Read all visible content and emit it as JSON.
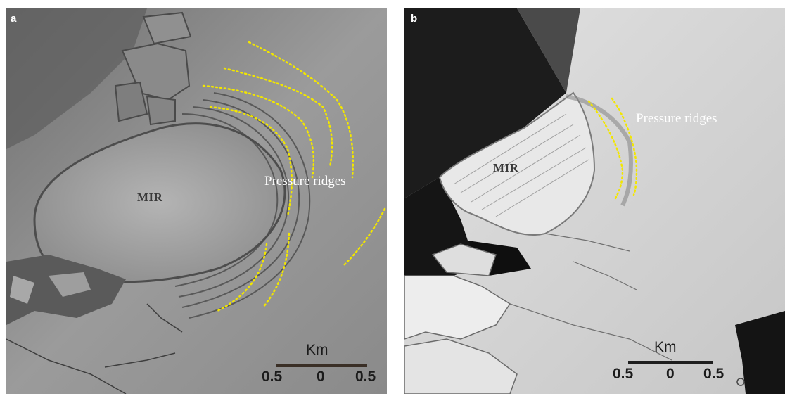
{
  "panels": [
    {
      "letter": "a",
      "region_label": "MIR",
      "feature_label": "Pressure ridges",
      "scale": {
        "unit": "Km",
        "ticks": [
          "0.5",
          "0",
          "0.5"
        ]
      }
    },
    {
      "letter": "b",
      "region_label": "MIR",
      "feature_label": "Pressure ridges",
      "scale": {
        "unit": "Km",
        "ticks": [
          "0.5",
          "0",
          "0.5"
        ]
      }
    }
  ],
  "colors": {
    "ridge_lines": "#f2e600",
    "label_white": "#ffffff",
    "label_dark": "#3a3a3a"
  }
}
